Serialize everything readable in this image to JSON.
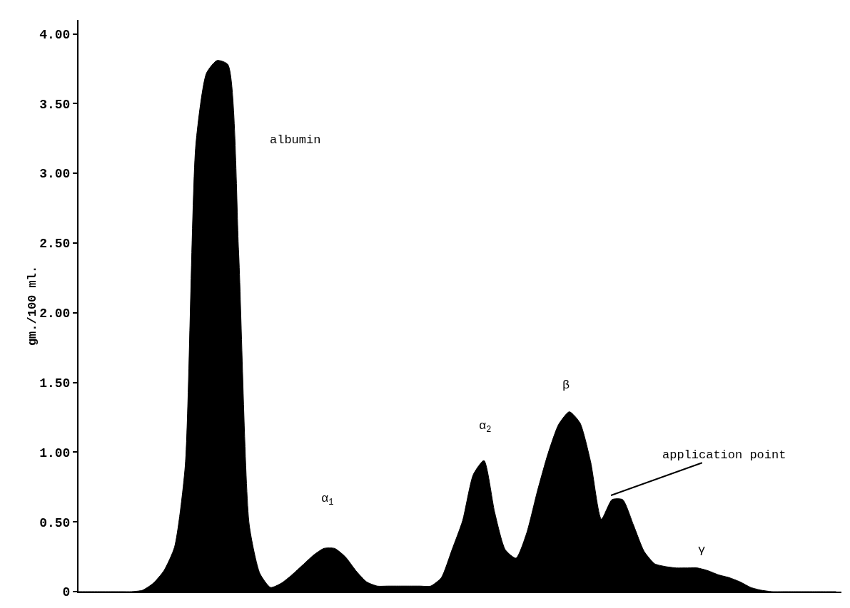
{
  "chart_data": {
    "type": "area",
    "ylabel": "gm./100 ml.",
    "categories": [
      null,
      null,
      null,
      null,
      null,
      null,
      null,
      null,
      null,
      null,
      null,
      null,
      null,
      null,
      null,
      null,
      null,
      null,
      null,
      null,
      null,
      null,
      null,
      null,
      null,
      null,
      null,
      null,
      null,
      null,
      null,
      null,
      null,
      null,
      null,
      null,
      null,
      null,
      null,
      null,
      null,
      null,
      null,
      null,
      null,
      null,
      null,
      null,
      null,
      null,
      null,
      null,
      null,
      null,
      null,
      null,
      null,
      null,
      null,
      null,
      null,
      null,
      null,
      null,
      null,
      null,
      null,
      null,
      null,
      null,
      null,
      null
    ],
    "series": [
      {
        "color": "#000000",
        "values": [
          0,
          0,
          0,
          0,
          0,
          0,
          0.01,
          0.06,
          0.15,
          0.32,
          0.9,
          3.21,
          3.72,
          3.81,
          3.78,
          2.45,
          0.48,
          0.13,
          0.03,
          0.06,
          0.12,
          0.19,
          0.26,
          0.31,
          0.31,
          0.25,
          0.15,
          0.07,
          0.04,
          0.04,
          0.04,
          0.04,
          0.04,
          0.04,
          0.1,
          0.3,
          0.51,
          0.84,
          0.94,
          0.57,
          0.3,
          0.24,
          0.42,
          0.72,
          0.99,
          1.2,
          1.29,
          1.21,
          0.93,
          0.52,
          0.66,
          0.66,
          0.48,
          0.29,
          0.2,
          0.18,
          0.17,
          0.17,
          0.17,
          0.15,
          0.12,
          0.1,
          0.07,
          0.03,
          0.01,
          0,
          0,
          0,
          0,
          0,
          0,
          0
        ]
      }
    ],
    "ylim": [
      0,
      4.1
    ],
    "yticks": [
      0,
      {
        "value": 0.5,
        "label": "0.50"
      },
      {
        "value": 1,
        "label": "1.00"
      },
      {
        "value": 1.5,
        "label": "1.50"
      },
      {
        "value": 2,
        "label": "2.00"
      },
      {
        "value": 2.5,
        "label": "2.50"
      },
      {
        "value": 3,
        "label": "3.00"
      },
      {
        "value": 3.5,
        "label": "3.50"
      },
      {
        "value": 4,
        "label": "4.00"
      }
    ],
    "tick_labels": "y",
    "annotations": [
      "albumin",
      "α$_{1}$",
      "α$_{2}$",
      "β",
      "application point",
      "γ"
    ]
  }
}
